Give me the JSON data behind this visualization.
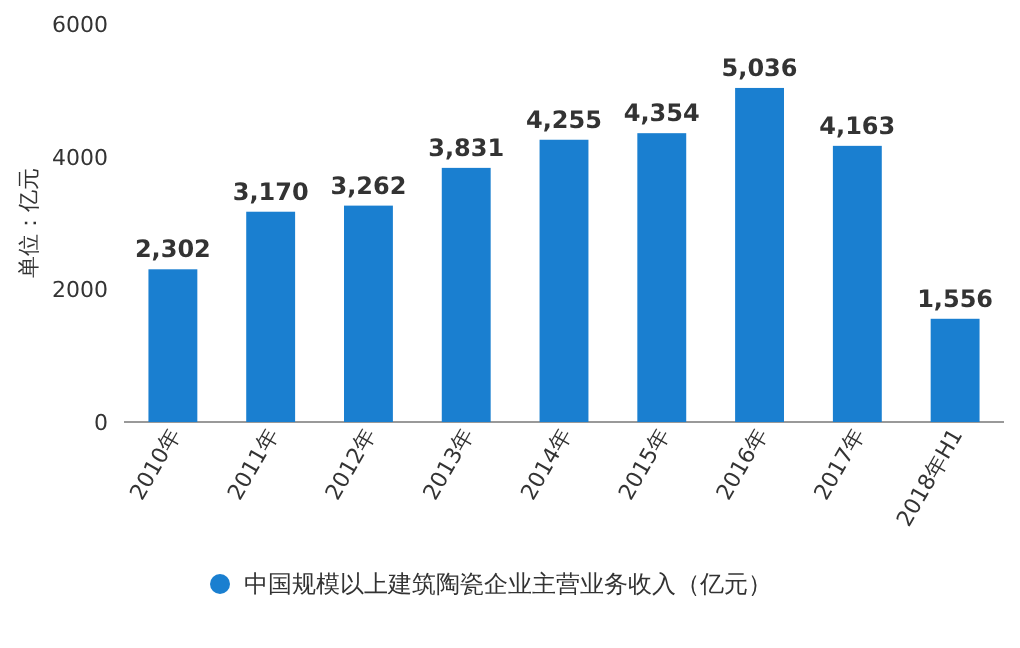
{
  "chart_data": {
    "type": "bar",
    "ylabel": "单位：亿元",
    "categories": [
      "2010年",
      "2011年",
      "2012年",
      "2013年",
      "2014年",
      "2015年",
      "2016年",
      "2017年",
      "2018年H1"
    ],
    "series": [
      {
        "name": "中国规模以上建筑陶瓷企业主营业务收入（亿元）",
        "color": "#1a7fd0",
        "values": [
          2302,
          3170,
          3262,
          3831,
          4255,
          4354,
          5036,
          4163,
          1556
        ],
        "value_labels": [
          "2,302",
          "3,170",
          "3,262",
          "3,831",
          "4,255",
          "4,354",
          "5,036",
          "4,163",
          "1,556"
        ]
      }
    ],
    "ylim": [
      0,
      6000
    ],
    "yticks": [
      0,
      2000,
      4000,
      6000
    ],
    "legend": "bottom",
    "grid": false
  }
}
